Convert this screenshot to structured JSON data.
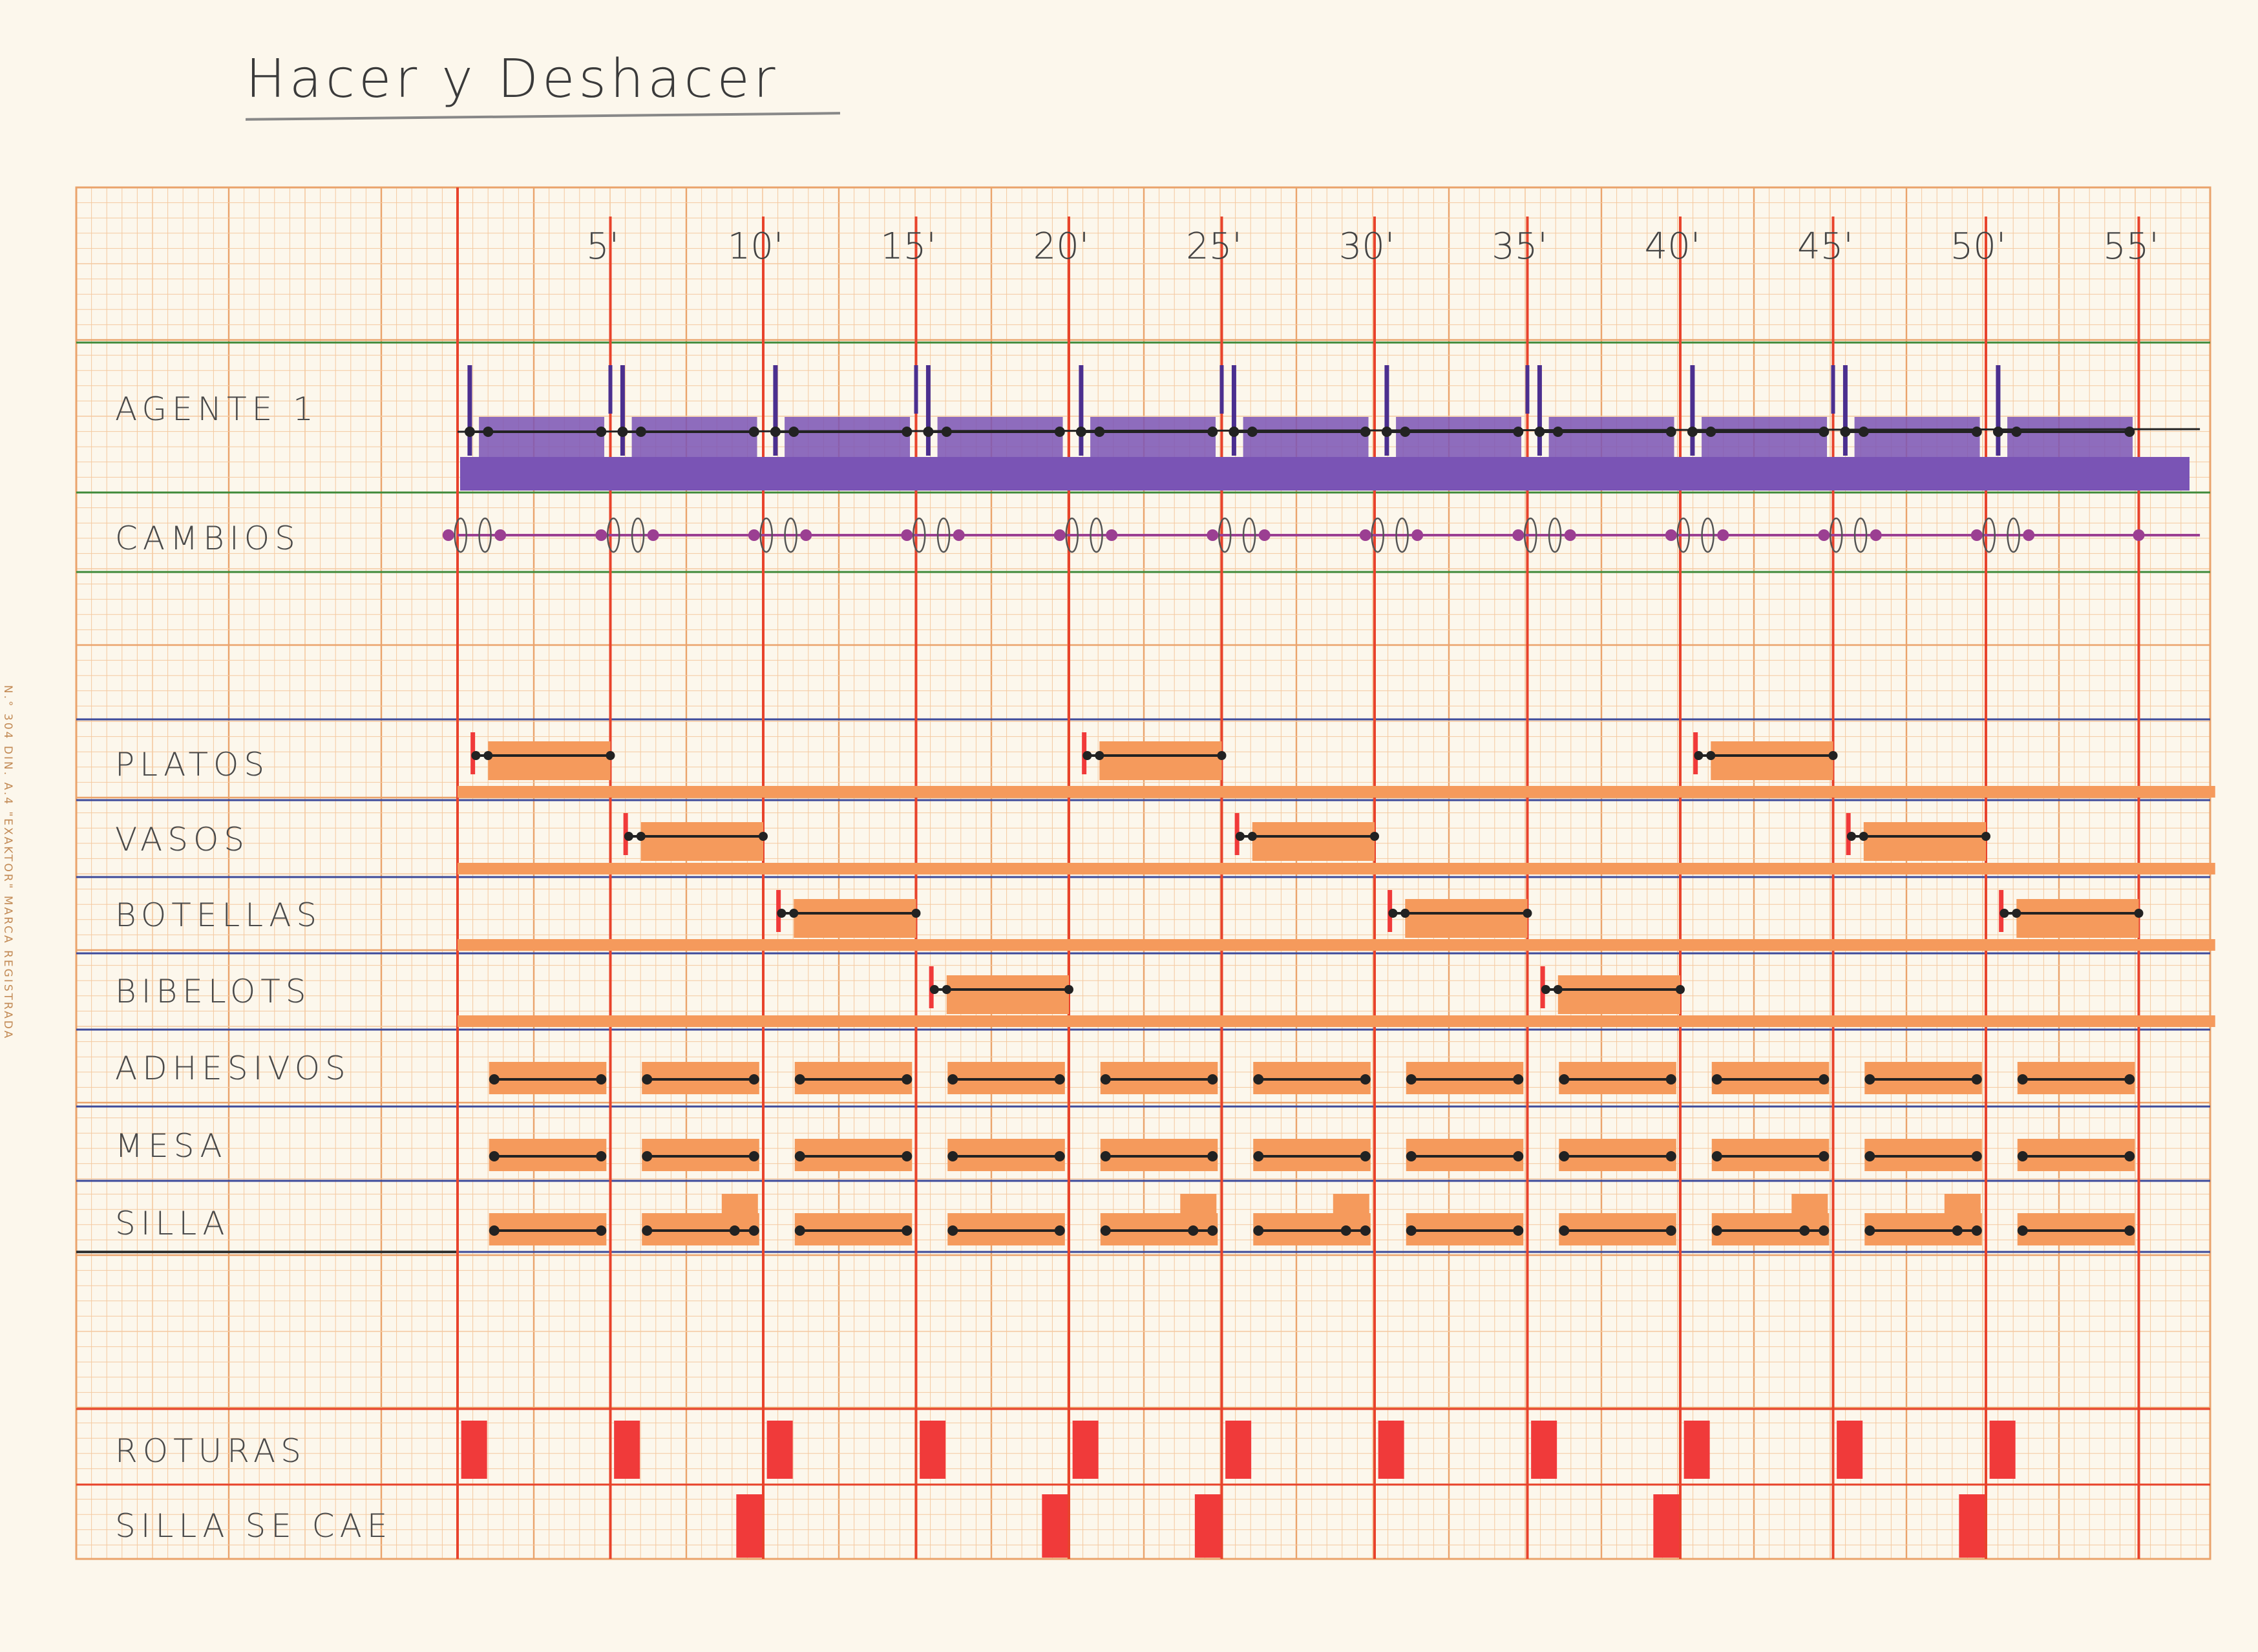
{
  "title": "Hacer y Deshacer",
  "side_note": "N.° 304  DIN. A.4  \"EXAKTOR\"  MARCA REGISTRADA",
  "time_labels": [
    "5'",
    "10'",
    "15'",
    "20'",
    "25'",
    "30'",
    "35'",
    "40'",
    "45'",
    "50'",
    "55'"
  ],
  "rows": {
    "agente": "AGENTE 1",
    "cambios": "CAMBIOS",
    "platos": "PLATOS",
    "vasos": "VASOS",
    "botellas": "BOTELLAS",
    "bibelots": "BIBELOTS",
    "adhesivos": "ADHESIVOS",
    "mesa": "MESA",
    "silla": "SILLA",
    "roturas": "ROTURAS",
    "silla_se_cae": "SILLA SE CAE"
  },
  "timeline": {
    "minutes_end": 57,
    "tick_every": 5,
    "object_events": {
      "platos": [
        0.5,
        20.5,
        40.5
      ],
      "vasos": [
        5.5,
        25.5,
        45.5
      ],
      "botellas": [
        10.5,
        30.5,
        50.5
      ],
      "bibelots": [
        15.5,
        35.5
      ]
    },
    "cycle_starts": [
      1,
      6,
      11,
      16,
      21,
      26,
      31,
      36,
      41,
      46,
      51
    ],
    "roturas_minutes": [
      0.5,
      5.5,
      10.5,
      15.5,
      20.5,
      25.5,
      30.5,
      35.5,
      40.5,
      45.5,
      50.5
    ],
    "silla_se_cae_minutes": [
      9.5,
      19.5,
      24.5,
      39.5,
      49.5
    ]
  },
  "colors": {
    "grid_minor": "#f4c9a0",
    "grid_major": "#eaa36b",
    "minute_line": "#e8432c",
    "green_line": "#3f8a3a",
    "blue_line": "#3d4a9a",
    "agent_fill": "#7a54b5",
    "agent_dark": "#4b2f8f",
    "cambios_line": "#9b3f92",
    "object_fill": "#f59a5c",
    "event_red": "#f03a3a",
    "ink": "#222222"
  }
}
